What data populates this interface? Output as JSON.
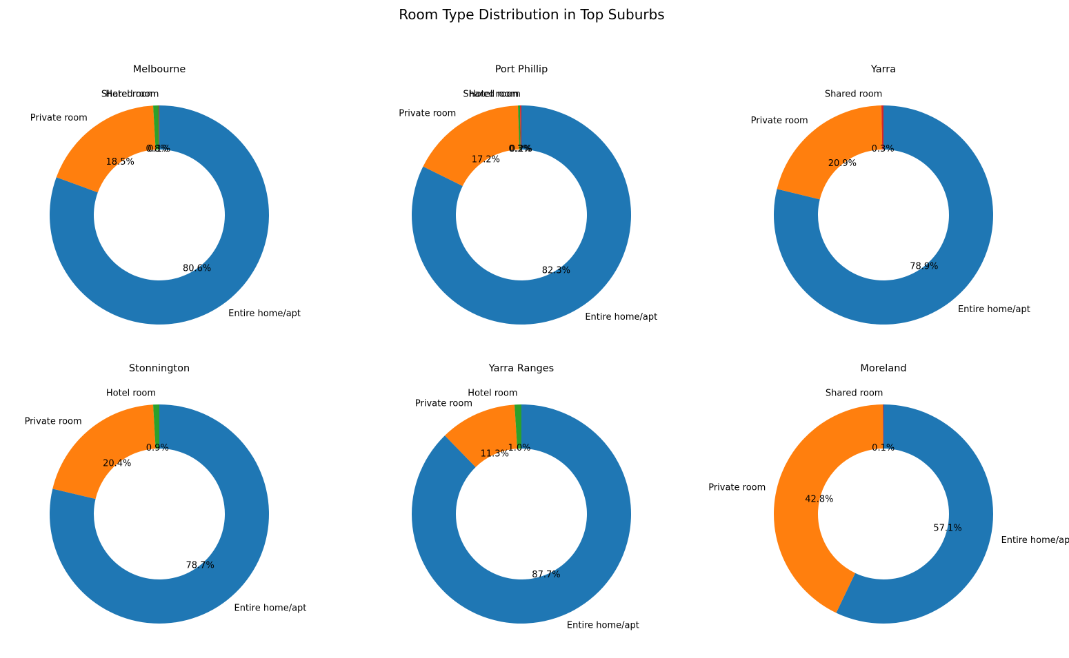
{
  "figure": {
    "title": "Room Type Distribution in Top Suburbs"
  },
  "colors": {
    "Entire home/apt": "#1f77b4",
    "Private room": "#ff7f0e",
    "Hotel room": "#2ca02c",
    "Shared room": "#d62728"
  },
  "chart_data": [
    {
      "type": "pie",
      "style": "donut",
      "title": "Melbourne",
      "slices": [
        {
          "label": "Entire home/apt",
          "value": 80.6,
          "pct_label": "80.6%"
        },
        {
          "label": "Private room",
          "value": 18.5,
          "pct_label": "18.5%"
        },
        {
          "label": "Hotel room",
          "value": 0.8,
          "pct_label": "0.8%"
        },
        {
          "label": "Shared room",
          "value": 0.1,
          "pct_label": "0.1%"
        }
      ]
    },
    {
      "type": "pie",
      "style": "donut",
      "title": "Port Phillip",
      "slices": [
        {
          "label": "Entire home/apt",
          "value": 82.3,
          "pct_label": "82.3%"
        },
        {
          "label": "Private room",
          "value": 17.2,
          "pct_label": "17.2%"
        },
        {
          "label": "Hotel room",
          "value": 0.3,
          "pct_label": "0.3%"
        },
        {
          "label": "Shared room",
          "value": 0.2,
          "pct_label": "0.2%"
        }
      ]
    },
    {
      "type": "pie",
      "style": "donut",
      "title": "Yarra",
      "slices": [
        {
          "label": "Entire home/apt",
          "value": 78.9,
          "pct_label": "78.9%"
        },
        {
          "label": "Private room",
          "value": 20.9,
          "pct_label": "20.9%"
        },
        {
          "label": "Shared room",
          "value": 0.3,
          "pct_label": "0.3%"
        }
      ]
    },
    {
      "type": "pie",
      "style": "donut",
      "title": "Stonnington",
      "slices": [
        {
          "label": "Entire home/apt",
          "value": 78.7,
          "pct_label": "78.7%"
        },
        {
          "label": "Private room",
          "value": 20.4,
          "pct_label": "20.4%"
        },
        {
          "label": "Hotel room",
          "value": 0.9,
          "pct_label": "0.9%"
        }
      ]
    },
    {
      "type": "pie",
      "style": "donut",
      "title": "Yarra Ranges",
      "slices": [
        {
          "label": "Entire home/apt",
          "value": 87.7,
          "pct_label": "87.7%"
        },
        {
          "label": "Private room",
          "value": 11.3,
          "pct_label": "11.3%"
        },
        {
          "label": "Hotel room",
          "value": 1.0,
          "pct_label": "1.0%"
        }
      ]
    },
    {
      "type": "pie",
      "style": "donut",
      "title": "Moreland",
      "slices": [
        {
          "label": "Entire home/apt",
          "value": 57.1,
          "pct_label": "57.1%"
        },
        {
          "label": "Private room",
          "value": 42.8,
          "pct_label": "42.8%"
        },
        {
          "label": "Shared room",
          "value": 0.1,
          "pct_label": "0.1%"
        }
      ]
    }
  ]
}
